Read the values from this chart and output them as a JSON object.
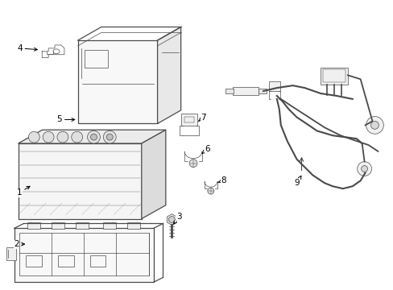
{
  "background_color": "#ffffff",
  "line_color": "#4a4a4a",
  "label_color": "#000000",
  "fig_width": 4.89,
  "fig_height": 3.6,
  "dpi": 100,
  "lw_main": 0.9,
  "lw_thin": 0.5,
  "label_fontsize": 7.5
}
